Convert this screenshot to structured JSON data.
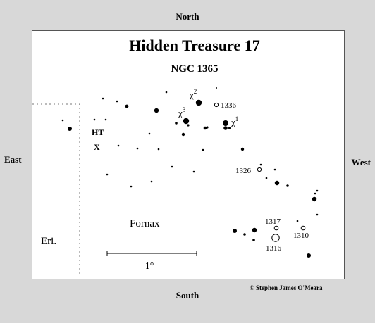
{
  "directions": {
    "north": "North",
    "south": "South",
    "east": "East",
    "west": "West"
  },
  "title": "Hidden Treasure 17",
  "subtitle": "NGC 1365",
  "constellation_labels": {
    "fornax": "Fornax",
    "eridanus": "Eri."
  },
  "target_marker": {
    "line1": "HT",
    "line2": "X"
  },
  "scale_bar": {
    "label": "1°"
  },
  "labeled_stars": [
    {
      "symbol": "χ",
      "superscript": "1",
      "name": "chi-1"
    },
    {
      "symbol": "χ",
      "superscript": "2",
      "name": "chi-2"
    },
    {
      "symbol": "χ",
      "superscript": "3",
      "name": "chi-3"
    }
  ],
  "galaxies": [
    "1336",
    "1326",
    "1317",
    "1316",
    "1310"
  ],
  "copyright": "© Stephen James O'Meara"
}
